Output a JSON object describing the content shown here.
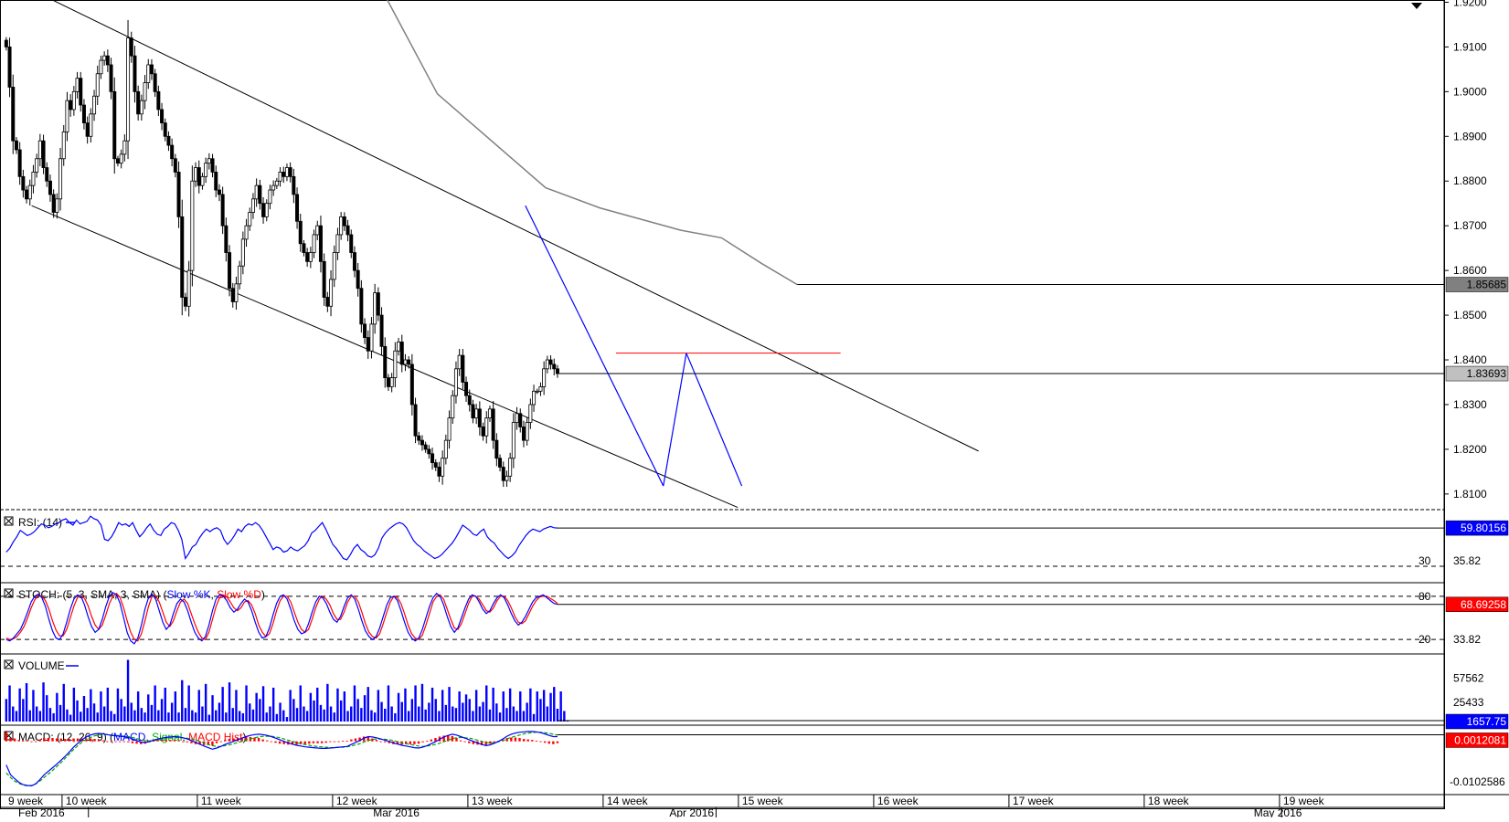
{
  "chart_data": {
    "type": "candlestick",
    "instrument": "",
    "main": {
      "y_ticks": [
        "1.9200",
        "1.9100",
        "1.9000",
        "1.8900",
        "1.8800",
        "1.8700",
        "1.8600",
        "1.8500",
        "1.8400",
        "1.8300",
        "1.8200",
        "1.8100"
      ],
      "ylim": [
        1.8065,
        1.9205
      ],
      "ma_label": "1.85685",
      "ma_value": 1.85685,
      "price_label": "1.83693",
      "price_value": 1.83693,
      "resistance": 1.8415,
      "channel_upper": [
        [
          3.2,
          1.921
        ],
        [
          72,
          1.8196
        ]
      ],
      "channel_lower": [
        [
          2,
          1.8745
        ],
        [
          54.2,
          1.807
        ]
      ],
      "pattern_lines": [
        [
          [
            38.5,
            1.8745
          ],
          [
            48.7,
            1.8118
          ]
        ],
        [
          [
            48.7,
            1.8118
          ],
          [
            50.4,
            1.8415
          ]
        ],
        [
          [
            50.4,
            1.8415
          ],
          [
            54.5,
            1.8118
          ]
        ]
      ],
      "moving_average": [
        [
          28.3,
          1.9205
        ],
        [
          32,
          1.8995
        ],
        [
          40,
          1.8785
        ],
        [
          44,
          1.874
        ],
        [
          50,
          1.869
        ],
        [
          53,
          1.8673
        ],
        [
          56,
          1.8615
        ],
        [
          58.6,
          1.85685
        ]
      ],
      "candles": {
        "start": 1.9115,
        "closes": [
          1.91,
          1.901,
          1.889,
          1.887,
          1.881,
          1.878,
          1.876,
          1.879,
          1.882,
          1.885,
          1.889,
          1.883,
          1.88,
          1.877,
          1.873,
          1.876,
          1.885,
          1.891,
          1.898,
          1.896,
          1.9,
          1.903,
          1.897,
          1.893,
          1.89,
          1.895,
          1.899,
          1.904,
          1.907,
          1.908,
          1.906,
          1.9,
          1.885,
          1.884,
          1.886,
          1.889,
          1.912,
          1.908,
          1.9,
          1.895,
          1.898,
          1.902,
          1.906,
          1.904,
          1.9,
          1.896,
          1.893,
          1.89,
          1.888,
          1.885,
          1.882,
          1.872,
          1.854,
          1.852,
          1.86,
          1.88,
          1.883,
          1.879,
          1.881,
          1.884,
          1.885,
          1.882,
          1.878,
          1.877,
          1.87,
          1.864,
          1.856,
          1.853,
          1.857,
          1.861,
          1.867,
          1.87,
          1.873,
          1.876,
          1.879,
          1.875,
          1.872,
          1.875,
          1.878,
          1.879,
          1.88,
          1.882,
          1.881,
          1.883,
          1.881,
          1.877,
          1.871,
          1.866,
          1.864,
          1.862,
          1.864,
          1.868,
          1.87,
          1.862,
          1.854,
          1.852,
          1.858,
          1.864,
          1.868,
          1.872,
          1.87,
          1.868,
          1.864,
          1.86,
          1.856,
          1.848,
          1.845,
          1.842,
          1.848,
          1.855,
          1.85,
          1.843,
          1.836,
          1.834,
          1.836,
          1.842,
          1.844,
          1.839,
          1.84,
          1.839,
          1.83,
          1.823,
          1.822,
          1.821,
          1.82,
          1.819,
          1.817,
          1.816,
          1.814,
          1.818,
          1.822,
          1.827,
          1.832,
          1.838,
          1.841,
          1.835,
          1.832,
          1.83,
          1.827,
          1.829,
          1.825,
          1.823,
          1.827,
          1.829,
          1.822,
          1.818,
          1.816,
          1.813,
          1.814,
          1.818,
          1.826,
          1.828,
          1.825,
          1.822,
          1.826,
          1.83,
          1.833,
          1.833,
          1.834,
          1.838,
          1.84,
          1.839,
          1.838,
          1.83693
        ],
        "date_start": "2016-02-03",
        "bars_per_day": 4
      }
    },
    "rsi": {
      "label": "RSI: (14)",
      "value_label": "59.80156",
      "value": 59.80156,
      "level_label": "30",
      "level": 30,
      "mid_label": "35.82",
      "ylim": [
        20,
        72
      ],
      "values": [
        41,
        44,
        49,
        53,
        58,
        56,
        54,
        55,
        57,
        60,
        63,
        62,
        60,
        61,
        63,
        64,
        66,
        67,
        64,
        62,
        66,
        63,
        64,
        65,
        69,
        67,
        66,
        62,
        51,
        50,
        53,
        58,
        64,
        62,
        63,
        61,
        64,
        58,
        53,
        56,
        60,
        63,
        58,
        55,
        54,
        59,
        61,
        64,
        63,
        58,
        51,
        36,
        40,
        45,
        47,
        52,
        56,
        59,
        57,
        59,
        60,
        58,
        51,
        47,
        50,
        54,
        59,
        57,
        61,
        63,
        62,
        64,
        62,
        58,
        53,
        48,
        43,
        45,
        44,
        41,
        42,
        45,
        43,
        42,
        44,
        46,
        50,
        56,
        58,
        61,
        64,
        59,
        53,
        47,
        44,
        40,
        36,
        35,
        39,
        44,
        47,
        43,
        41,
        38,
        37,
        39,
        44,
        52,
        56,
        59,
        61,
        63,
        64,
        63,
        60,
        55,
        50,
        47,
        45,
        42,
        40,
        38,
        36,
        37,
        39,
        42,
        45,
        48,
        52,
        57,
        62,
        60,
        58,
        55,
        54,
        57,
        59,
        53,
        50,
        48,
        44,
        41,
        38,
        36,
        38,
        41,
        46,
        50,
        54,
        57,
        59,
        58,
        57,
        59,
        60,
        61,
        60,
        59.8
      ]
    },
    "stoch": {
      "label": "STOCH: (5, 3, SMA, 3, SMA)",
      "k_label": "Slow %K",
      "d_label": "Slow %D",
      "value_label": "68.69258",
      "value": 68.69258,
      "upper_label": "80",
      "upper": 80,
      "lower_label": "20",
      "lower": 20,
      "mid_label": "33.82",
      "ylim": [
        5,
        95
      ],
      "k": [
        20,
        18,
        22,
        28,
        34,
        45,
        58,
        72,
        80,
        83,
        78,
        66,
        48,
        32,
        22,
        20,
        28,
        44,
        62,
        76,
        82,
        80,
        68,
        52,
        38,
        30,
        34,
        48,
        66,
        80,
        85,
        82,
        70,
        50,
        30,
        18,
        14,
        22,
        40,
        62,
        78,
        83,
        76,
        60,
        44,
        34,
        40,
        56,
        70,
        76,
        72,
        60,
        44,
        30,
        22,
        18,
        24,
        40,
        60,
        76,
        82,
        80,
        74,
        64,
        58,
        62,
        70,
        76,
        72,
        60,
        44,
        30,
        22,
        24,
        36,
        54,
        70,
        80,
        82,
        76,
        62,
        46,
        34,
        28,
        30,
        42,
        58,
        72,
        80,
        78,
        70,
        58,
        48,
        44,
        52,
        66,
        78,
        82,
        76,
        62,
        46,
        32,
        24,
        20,
        24,
        36,
        52,
        68,
        78,
        80,
        74,
        60,
        44,
        30,
        22,
        18,
        22,
        34,
        50,
        66,
        78,
        84,
        80,
        68,
        52,
        38,
        30,
        36,
        50,
        64,
        76,
        82,
        80,
        72,
        62,
        56,
        60,
        70,
        78,
        82,
        78,
        68,
        56,
        46,
        40,
        44,
        52,
        62,
        72,
        78,
        80,
        82,
        78,
        74,
        70,
        68.7
      ],
      "d": [
        22,
        20,
        21,
        24,
        30,
        38,
        50,
        64,
        75,
        81,
        80,
        74,
        62,
        46,
        33,
        25,
        25,
        34,
        50,
        66,
        78,
        81,
        77,
        67,
        52,
        40,
        34,
        40,
        54,
        70,
        80,
        84,
        78,
        64,
        46,
        30,
        20,
        18,
        28,
        46,
        66,
        80,
        81,
        72,
        58,
        44,
        38,
        46,
        60,
        72,
        76,
        70,
        56,
        42,
        30,
        22,
        20,
        30,
        48,
        66,
        78,
        82,
        79,
        72,
        64,
        60,
        64,
        72,
        74,
        68,
        56,
        40,
        30,
        24,
        28,
        42,
        60,
        74,
        80,
        80,
        72,
        58,
        44,
        34,
        30,
        34,
        48,
        64,
        76,
        80,
        76,
        68,
        56,
        48,
        48,
        58,
        72,
        80,
        80,
        72,
        58,
        42,
        30,
        24,
        22,
        28,
        42,
        58,
        72,
        80,
        78,
        70,
        56,
        40,
        28,
        22,
        20,
        26,
        40,
        56,
        72,
        80,
        82,
        76,
        62,
        48,
        36,
        34,
        42,
        56,
        70,
        80,
        80,
        76,
        68,
        60,
        58,
        64,
        74,
        80,
        80,
        74,
        64,
        52,
        44,
        42,
        46,
        56,
        66,
        74,
        79,
        80,
        80,
        77,
        74,
        70
      ]
    },
    "volume": {
      "label": "VOLUME",
      "value_label": "1657.75",
      "value": 1657.75,
      "tick_labels": [
        "57562",
        "25433"
      ],
      "ylim": [
        0,
        85000
      ],
      "values": [
        30000,
        48000,
        20000,
        14000,
        44000,
        30000,
        51000,
        15000,
        42000,
        20000,
        14000,
        52000,
        35000,
        18000,
        11000,
        38000,
        22000,
        50000,
        16000,
        9000,
        45000,
        28000,
        13000,
        34000,
        18000,
        43000,
        24000,
        12000,
        40000,
        20000,
        45000,
        14000,
        10000,
        44000,
        30000,
        20000,
        82000,
        25000,
        15000,
        40000,
        18000,
        12000,
        36000,
        22000,
        48000,
        15000,
        30000,
        45000,
        12000,
        25000,
        40000,
        12000,
        55000,
        18000,
        48000,
        15000,
        12000,
        42000,
        20000,
        50000,
        9000,
        35000,
        15000,
        25000,
        46000,
        12000,
        52000,
        18000,
        42000,
        14000,
        11000,
        48000,
        24000,
        16000,
        38000,
        30000,
        47000,
        12000,
        20000,
        45000,
        10000,
        25000,
        15000,
        6000,
        42000,
        30000,
        18000,
        48000,
        20000,
        14000,
        38000,
        28000,
        45000,
        22000,
        16000,
        50000,
        20000,
        12000,
        44000,
        28000,
        40000,
        14000,
        20000,
        48000,
        30000,
        18000,
        35000,
        46000,
        15000,
        12000,
        42000,
        26000,
        17000,
        48000,
        20000,
        11000,
        38000,
        26000,
        44000,
        14000,
        30000,
        48000,
        20000,
        50000,
        16000,
        25000,
        45000,
        30000,
        14000,
        42000,
        22000,
        46000,
        20000,
        18000,
        40000,
        25000,
        36000,
        30000,
        14000,
        42000,
        20000,
        26000,
        48000,
        16000,
        45000,
        24000,
        12000,
        40000,
        18000,
        44000,
        20000,
        14000,
        40000,
        14000,
        25000,
        44000,
        10000,
        40000,
        30000,
        42000,
        20000,
        38000,
        46000,
        17000,
        40000,
        14000,
        1657.75
      ]
    },
    "macd": {
      "label": "MACD: (12, 26, 9)",
      "main_label": "MACD",
      "signal_label": "Signal",
      "hist_label": "MACD Hist",
      "value_label": "0.0012081",
      "value": 0.0012081,
      "tick_label": "-0.0102586",
      "ylim": [
        -0.0126,
        0.0034
      ],
      "main": [
        -0.006,
        -0.0085,
        -0.0095,
        -0.0104,
        -0.011,
        -0.0112,
        -0.0113,
        -0.0108,
        -0.0097,
        -0.0085,
        -0.0076,
        -0.0067,
        -0.0058,
        -0.0048,
        -0.0038,
        -0.0027,
        -0.0015,
        -0.0005,
        0.0004,
        0.0011,
        0.0016,
        0.0019,
        0.002,
        0.0019,
        0.0017,
        0.0015,
        0.0014,
        0.0013,
        0.0012,
        0.001,
        0.0006,
        0.0002,
        -0.0002,
        -0.0003,
        -0.0001,
        0.0003,
        0.0006,
        0.0008,
        0.001,
        0.0011,
        0.0012,
        0.0011,
        0.0009,
        0.0006,
        0.0002,
        -0.0003,
        -0.0007,
        -0.0012,
        -0.0016,
        -0.002,
        -0.0017,
        -0.0013,
        -0.0008,
        -0.0004,
        0.0,
        0.0004,
        0.0008,
        0.0012,
        0.0015,
        0.0017,
        0.0018,
        0.0017,
        0.0015,
        0.0012,
        0.0008,
        0.0004,
        0.0,
        -0.0004,
        -0.0007,
        -0.001,
        -0.0012,
        -0.0014,
        -0.0015,
        -0.0016,
        -0.0017,
        -0.0018,
        -0.0018,
        -0.0017,
        -0.0016,
        -0.0015,
        -0.0014,
        -0.0013,
        -0.0008,
        -0.0003,
        0.0002,
        0.0008,
        0.0012,
        0.0011,
        0.0009,
        0.0006,
        0.0003,
        0.0,
        -0.0004,
        -0.0007,
        -0.001,
        -0.0012,
        -0.0014,
        -0.0016,
        -0.0017,
        -0.0015,
        -0.0011,
        -0.0006,
        -0.0001,
        0.0005,
        0.0011,
        0.0015,
        0.0018,
        0.0016,
        0.0012,
        0.0008,
        0.0004,
        0.0,
        -0.0004,
        -0.0008,
        -0.0011,
        -0.0009,
        -0.0005,
        0.0,
        0.0006,
        0.0013,
        0.0018,
        0.0021,
        0.0023,
        0.0024,
        0.0025,
        0.0025,
        0.0024,
        0.0022,
        0.0019,
        0.0015,
        0.0012,
        0.0012081
      ],
      "signal": [
        -0.008,
        -0.0092,
        -0.0101,
        -0.0107,
        -0.0111,
        -0.0113,
        -0.0112,
        -0.0108,
        -0.0101,
        -0.0092,
        -0.0083,
        -0.0074,
        -0.0064,
        -0.0054,
        -0.0043,
        -0.0032,
        -0.0021,
        -0.0011,
        -0.0002,
        0.0005,
        0.001,
        0.0014,
        0.0016,
        0.0017,
        0.0017,
        0.0016,
        0.0015,
        0.0014,
        0.0013,
        0.0012,
        0.001,
        0.0007,
        0.0004,
        0.0002,
        0.0001,
        0.0002,
        0.0003,
        0.0005,
        0.0007,
        0.0008,
        0.0009,
        0.0009,
        0.0009,
        0.0008,
        0.0006,
        0.0003,
        0.0,
        -0.0004,
        -0.0008,
        -0.0011,
        -0.0013,
        -0.0013,
        -0.0011,
        -0.0009,
        -0.0006,
        -0.0003,
        0.0,
        0.0003,
        0.0006,
        0.0009,
        0.0011,
        0.0013,
        0.0013,
        0.0013,
        0.0011,
        0.0009,
        0.0006,
        0.0003,
        0.0,
        -0.0003,
        -0.0006,
        -0.0008,
        -0.001,
        -0.0012,
        -0.0013,
        -0.0014,
        -0.0015,
        -0.0016,
        -0.0016,
        -0.0015,
        -0.0015,
        -0.0014,
        -0.0012,
        -0.0009,
        -0.0006,
        -0.0002,
        0.0002,
        0.0005,
        0.0006,
        0.0006,
        0.0005,
        0.0004,
        0.0002,
        -0.0001,
        -0.0003,
        -0.0006,
        -0.0008,
        -0.001,
        -0.0012,
        -0.0013,
        -0.0012,
        -0.001,
        -0.0008,
        -0.0005,
        -0.0001,
        0.0003,
        0.0007,
        0.0009,
        0.001,
        0.0009,
        0.0008,
        0.0006,
        0.0003,
        0.0,
        -0.0003,
        -0.0004,
        -0.0003,
        -0.0001,
        0.0002,
        0.0006,
        0.001,
        0.0013,
        0.0016,
        0.0019,
        0.0021,
        0.0022,
        0.0023,
        0.0023,
        0.0022,
        0.002,
        0.0018,
        0.0016
      ]
    },
    "x_axis": {
      "week_labels": [
        "9 week",
        "10 week",
        "11 week",
        "12 week",
        "13 week",
        "14 week",
        "15 week",
        "16 week",
        "17 week",
        "18 week",
        "19 week"
      ],
      "week_positions": [
        0,
        4.25,
        14.25,
        24.25,
        34.25,
        44.25,
        54.25,
        64.25,
        74.25,
        84.25,
        94.25
      ],
      "month_labels": [
        "Feb 2016",
        "Mar 2016",
        "Apr 2016",
        "May 2016"
      ],
      "month_positions": [
        0,
        26.3,
        48.2,
        91.4
      ],
      "month_marks": [
        6.2,
        52.6,
        94.4
      ]
    }
  }
}
